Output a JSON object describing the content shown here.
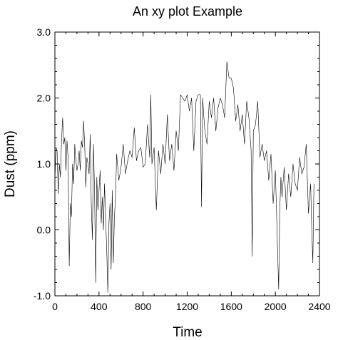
{
  "chart_data": {
    "type": "line",
    "title": "An xy plot Example",
    "xlabel": "Time",
    "ylabel": "Dust (ppm)",
    "xlim": [
      0,
      2400
    ],
    "ylim": [
      -1.0,
      3.0
    ],
    "xticks": [
      0,
      400,
      800,
      1200,
      1600,
      2000,
      2400
    ],
    "xtick_labels": [
      "0",
      "400",
      "800",
      "1200",
      "1600",
      "2000",
      "2400"
    ],
    "yticks": [
      -1.0,
      0.0,
      1.0,
      2.0,
      3.0
    ],
    "ytick_labels": [
      "-1.0",
      "0.0",
      "1.0",
      "2.0",
      "3.0"
    ],
    "grid": false,
    "legend": "none",
    "series": [
      {
        "color": "#000000",
        "x": [
          0,
          10,
          20,
          30,
          40,
          50,
          60,
          70,
          80,
          90,
          100,
          110,
          120,
          130,
          140,
          150,
          160,
          170,
          180,
          190,
          200,
          210,
          220,
          230,
          240,
          250,
          260,
          270,
          280,
          290,
          300,
          310,
          320,
          330,
          340,
          350,
          360,
          370,
          380,
          390,
          400,
          410,
          420,
          430,
          440,
          450,
          460,
          470,
          480,
          490,
          500,
          510,
          520,
          530,
          540,
          550,
          560,
          580,
          600,
          620,
          640,
          660,
          680,
          700,
          720,
          740,
          760,
          780,
          800,
          820,
          840,
          860,
          870,
          880,
          900,
          920,
          940,
          960,
          980,
          1000,
          1020,
          1040,
          1060,
          1080,
          1100,
          1120,
          1140,
          1160,
          1180,
          1200,
          1220,
          1240,
          1260,
          1280,
          1300,
          1320,
          1330,
          1340,
          1360,
          1380,
          1400,
          1420,
          1440,
          1460,
          1480,
          1500,
          1520,
          1540,
          1560,
          1580,
          1600,
          1620,
          1640,
          1660,
          1680,
          1700,
          1720,
          1740,
          1760,
          1780,
          1790,
          1800,
          1820,
          1840,
          1860,
          1880,
          1900,
          1920,
          1940,
          1960,
          1980,
          2000,
          2020,
          2030,
          2040,
          2050,
          2060,
          2080,
          2100,
          2120,
          2140,
          2160,
          2180,
          2200,
          2220,
          2240,
          2260,
          2280,
          2300,
          2320,
          2330,
          2340,
          2350
        ],
        "y": [
          0.75,
          1.25,
          1.2,
          0.55,
          1.0,
          0.8,
          1.35,
          1.7,
          1.3,
          1.4,
          0.9,
          1.35,
          1.1,
          -0.55,
          0.4,
          0.2,
          1.0,
          0.7,
          1.3,
          1.05,
          0.9,
          1.0,
          1.2,
          0.9,
          1.35,
          1.25,
          1.65,
          1.3,
          0.65,
          1.1,
          1.0,
          0.85,
          1.45,
          0.4,
          -0.15,
          1.3,
          0.55,
          -0.8,
          0.8,
          0.3,
          0.6,
          0.9,
          0.1,
          0.5,
          0.0,
          0.7,
          0.2,
          -0.3,
          -0.95,
          0.1,
          0.4,
          -0.6,
          0.6,
          -0.5,
          0.2,
          0.5,
          1.15,
          0.75,
          0.95,
          1.3,
          0.85,
          1.05,
          1.2,
          1.1,
          1.55,
          1.05,
          1.2,
          1.25,
          0.95,
          1.0,
          1.6,
          1.1,
          2.05,
          1.0,
          1.25,
          0.3,
          1.2,
          0.85,
          1.3,
          1.0,
          1.75,
          1.05,
          1.3,
          0.9,
          1.5,
          1.2,
          2.05,
          2.0,
          1.95,
          2.05,
          1.8,
          2.0,
          1.2,
          1.95,
          2.05,
          2.05,
          0.35,
          2.0,
          1.5,
          1.3,
          1.95,
          1.7,
          2.0,
          1.5,
          1.85,
          2.0,
          1.9,
          1.7,
          2.55,
          2.3,
          2.3,
          2.15,
          1.65,
          1.9,
          1.5,
          1.75,
          1.3,
          1.95,
          1.7,
          1.2,
          -0.4,
          1.5,
          1.6,
          1.95,
          1.1,
          1.3,
          1.05,
          1.2,
          0.75,
          1.15,
          0.4,
          0.9,
          -0.3,
          -0.9,
          0.3,
          0.8,
          0.5,
          0.95,
          0.3,
          0.85,
          0.5,
          1.0,
          0.7,
          0.6,
          1.1,
          0.85,
          0.95,
          1.3,
          0.25,
          0.7,
          0.0,
          -0.5,
          0.7
        ]
      }
    ]
  }
}
